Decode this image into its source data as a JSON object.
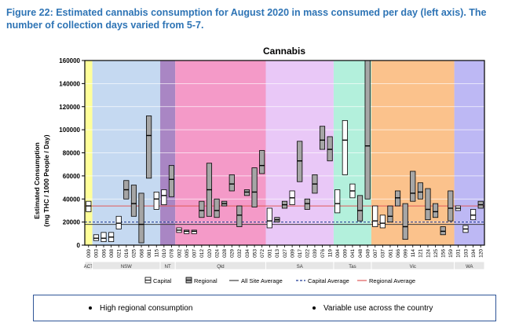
{
  "figure_title": "Figure 22: Estimated cannabis consumption for August 2020 in mass consumed per day (left axis). The number of collection days varied from 5-7.",
  "summary": {
    "bullets": [
      "High regional consumption",
      "Variable use across the country"
    ]
  },
  "colors": {
    "capital_box": "#ffffff",
    "regional_box": "#a6a6a6",
    "all_site_average": "#404040",
    "capital_average": "#1f3a93",
    "regional_average": "#e05a5a"
  },
  "chart_data": {
    "type": "box",
    "title": "Cannabis",
    "ylabel": "Estimated Consumption\n(mg THC / 1000 People / Day)",
    "ylim": [
      0,
      160000
    ],
    "yticks": [
      0,
      20000,
      40000,
      60000,
      80000,
      100000,
      120000,
      140000,
      160000
    ],
    "ytick_labels": [
      "0",
      "20000",
      "40000",
      "60000",
      "80000",
      "100000",
      "120000",
      "140000",
      "160000"
    ],
    "references": [
      {
        "name": "All Site Average",
        "value": 18000,
        "style": "solid"
      },
      {
        "name": "Capital Average",
        "value": 20000,
        "style": "dashed"
      },
      {
        "name": "Regional Average",
        "value": 34000,
        "style": "solid"
      }
    ],
    "legend": [
      "Capital",
      "Regional",
      "All Site Average",
      "Capital Average",
      "Regional Average"
    ],
    "regions": [
      {
        "name": "ACT",
        "color": "#ffff99"
      },
      {
        "name": "NSW",
        "color": "#c5d9f1"
      },
      {
        "name": "NT",
        "color": "#a986c4"
      },
      {
        "name": "Qld",
        "color": "#f49ac8"
      },
      {
        "name": "SA",
        "color": "#e9c8f7"
      },
      {
        "name": "Tas",
        "color": "#b3f0dc"
      },
      {
        "name": "Vic",
        "color": "#fbc28c"
      },
      {
        "name": "WA",
        "color": "#bdb8f4"
      }
    ],
    "sites": [
      {
        "id": "009",
        "region": "ACT",
        "capital": true,
        "low": 29000,
        "mid": 34000,
        "high": 38000
      },
      {
        "id": "003",
        "region": "NSW",
        "capital": true,
        "low": 4000,
        "mid": 6000,
        "high": 9000
      },
      {
        "id": "006",
        "region": "NSW",
        "capital": true,
        "low": 3000,
        "mid": 6000,
        "high": 11000
      },
      {
        "id": "008",
        "region": "NSW",
        "capital": true,
        "low": 3000,
        "mid": 7000,
        "high": 11000
      },
      {
        "id": "021",
        "region": "NSW",
        "capital": true,
        "low": 14000,
        "mid": 19000,
        "high": 25000
      },
      {
        "id": "016",
        "region": "NSW",
        "capital": false,
        "low": 40000,
        "mid": 48000,
        "high": 56000
      },
      {
        "id": "025",
        "region": "NSW",
        "capital": false,
        "low": 25000,
        "mid": 36000,
        "high": 52000
      },
      {
        "id": "068",
        "region": "NSW",
        "capital": false,
        "low": 2000,
        "mid": 18000,
        "high": 45000
      },
      {
        "id": "081",
        "region": "NSW",
        "capital": false,
        "low": 58000,
        "mid": 95000,
        "high": 112000
      },
      {
        "id": "115",
        "region": "NSW",
        "capital": true,
        "low": 31000,
        "mid": 40000,
        "high": 46000
      },
      {
        "id": "010",
        "region": "NT",
        "capital": true,
        "low": 35000,
        "mid": 43000,
        "high": 48000
      },
      {
        "id": "078",
        "region": "NT",
        "capital": false,
        "low": 42000,
        "mid": 57000,
        "high": 69000
      },
      {
        "id": "002",
        "region": "Qld",
        "capital": true,
        "low": 11000,
        "mid": 13000,
        "high": 15000
      },
      {
        "id": "005",
        "region": "Qld",
        "capital": true,
        "low": 10000,
        "mid": 12000,
        "high": 13000
      },
      {
        "id": "007",
        "region": "Qld",
        "capital": true,
        "low": 10000,
        "mid": 12000,
        "high": 13000
      },
      {
        "id": "012",
        "region": "Qld",
        "capital": false,
        "low": 24000,
        "mid": 30000,
        "high": 38000
      },
      {
        "id": "020",
        "region": "Qld",
        "capital": false,
        "low": 25000,
        "mid": 48000,
        "high": 71000
      },
      {
        "id": "024",
        "region": "Qld",
        "capital": false,
        "low": 24000,
        "mid": 30000,
        "high": 40000
      },
      {
        "id": "028",
        "region": "Qld",
        "capital": false,
        "low": 34000,
        "mid": 36000,
        "high": 38000
      },
      {
        "id": "029",
        "region": "Qld",
        "capital": false,
        "low": 47000,
        "mid": 53000,
        "high": 61000
      },
      {
        "id": "032",
        "region": "Qld",
        "capital": false,
        "low": 16000,
        "mid": 26000,
        "high": 34000
      },
      {
        "id": "034",
        "region": "Qld",
        "capital": false,
        "low": 43000,
        "mid": 46000,
        "high": 48000
      },
      {
        "id": "053",
        "region": "Qld",
        "capital": false,
        "low": 33000,
        "mid": 46000,
        "high": 67000
      },
      {
        "id": "072",
        "region": "Qld",
        "capital": false,
        "low": 62000,
        "mid": 69000,
        "high": 82000
      },
      {
        "id": "001",
        "region": "SA",
        "capital": true,
        "low": 15000,
        "mid": 21000,
        "high": 32000
      },
      {
        "id": "013",
        "region": "SA",
        "capital": false,
        "low": 20000,
        "mid": 22000,
        "high": 24000
      },
      {
        "id": "027",
        "region": "SA",
        "capital": false,
        "low": 32000,
        "mid": 35000,
        "high": 38000
      },
      {
        "id": "009",
        "region": "SA",
        "capital": true,
        "low": 35000,
        "mid": 41000,
        "high": 47000
      },
      {
        "id": "017",
        "region": "SA",
        "capital": false,
        "low": 55000,
        "mid": 73000,
        "high": 90000
      },
      {
        "id": "022",
        "region": "SA",
        "capital": false,
        "low": 31000,
        "mid": 36000,
        "high": 40000
      },
      {
        "id": "039",
        "region": "SA",
        "capital": false,
        "low": 45000,
        "mid": 53000,
        "high": 61000
      },
      {
        "id": "076",
        "region": "SA",
        "capital": false,
        "low": 83000,
        "mid": 91000,
        "high": 103000
      },
      {
        "id": "119",
        "region": "SA",
        "capital": false,
        "low": 73000,
        "mid": 83000,
        "high": 94000
      },
      {
        "id": "004",
        "region": "Tas",
        "capital": true,
        "low": 28000,
        "mid": 36000,
        "high": 48000
      },
      {
        "id": "009",
        "region": "Tas",
        "capital": true,
        "low": 61000,
        "mid": 91000,
        "high": 108000
      },
      {
        "id": "041",
        "region": "Tas",
        "capital": true,
        "low": 41000,
        "mid": 47000,
        "high": 53000
      },
      {
        "id": "048",
        "region": "Tas",
        "capital": false,
        "low": 21000,
        "mid": 30000,
        "high": 43000
      },
      {
        "id": "049",
        "region": "Tas",
        "capital": false,
        "low": 40000,
        "mid": 86000,
        "high": 160000
      },
      {
        "id": "007",
        "region": "Vic",
        "capital": true,
        "low": 16000,
        "mid": 21000,
        "high": 34000
      },
      {
        "id": "037",
        "region": "Vic",
        "capital": true,
        "low": 15000,
        "mid": 19000,
        "high": 26000
      },
      {
        "id": "061",
        "region": "Vic",
        "capital": false,
        "low": 20000,
        "mid": 25000,
        "high": 34000
      },
      {
        "id": "066",
        "region": "Vic",
        "capital": false,
        "low": 34000,
        "mid": 41000,
        "high": 47000
      },
      {
        "id": "099",
        "region": "Vic",
        "capital": false,
        "low": 5000,
        "mid": 16000,
        "high": 36000
      },
      {
        "id": "114",
        "region": "Vic",
        "capital": false,
        "low": 38000,
        "mid": 45000,
        "high": 64000
      },
      {
        "id": "121",
        "region": "Vic",
        "capital": false,
        "low": 40000,
        "mid": 46000,
        "high": 54000
      },
      {
        "id": "124",
        "region": "Vic",
        "capital": false,
        "low": 22000,
        "mid": 31000,
        "high": 49000
      },
      {
        "id": "125",
        "region": "Vic",
        "capital": false,
        "low": 24000,
        "mid": 29000,
        "high": 36000
      },
      {
        "id": "156",
        "region": "Vic",
        "capital": false,
        "low": 9000,
        "mid": 12000,
        "high": 16000
      },
      {
        "id": "159",
        "region": "Vic",
        "capital": false,
        "low": 21000,
        "mid": 32000,
        "high": 47000
      },
      {
        "id": "101",
        "region": "WA",
        "capital": true,
        "low": 30000,
        "mid": 32000,
        "high": 34000
      },
      {
        "id": "103",
        "region": "WA",
        "capital": true,
        "low": 11000,
        "mid": 14000,
        "high": 17000
      },
      {
        "id": "104",
        "region": "WA",
        "capital": true,
        "low": 22000,
        "mid": 26000,
        "high": 31000
      },
      {
        "id": "120",
        "region": "WA",
        "capital": false,
        "low": 32000,
        "mid": 35000,
        "high": 38000
      }
    ]
  }
}
